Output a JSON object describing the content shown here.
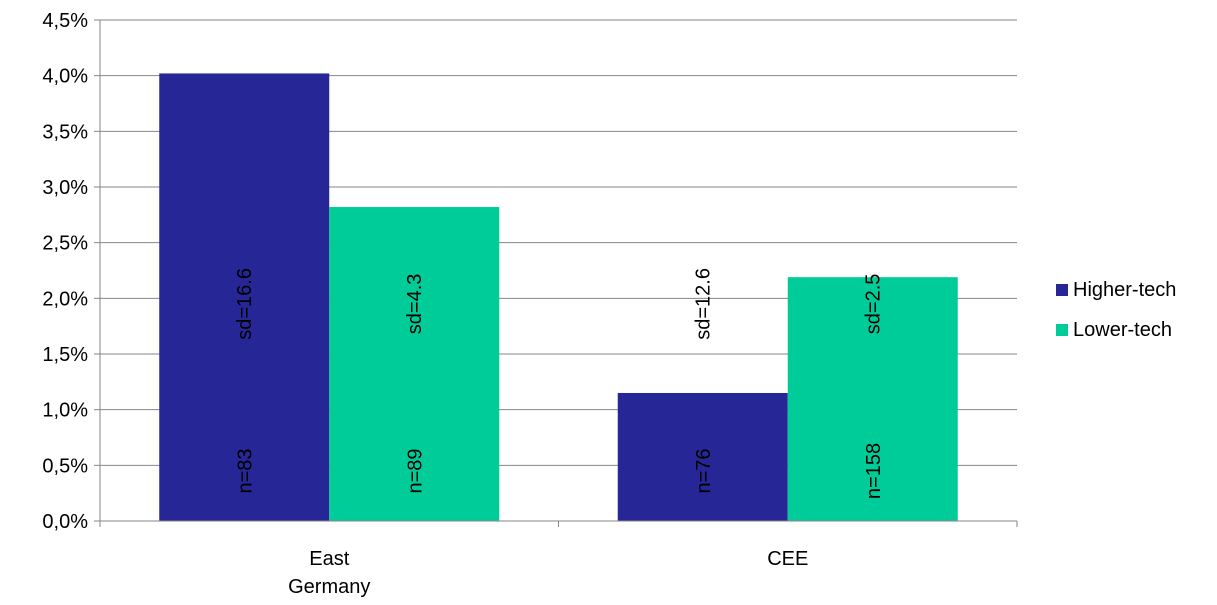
{
  "chart_data": {
    "type": "bar",
    "categories": [
      "East Germany",
      "CEE"
    ],
    "series": [
      {
        "name": "Higher-tech",
        "color": "#262696",
        "values": [
          4.02,
          1.15
        ],
        "sd_labels": [
          "sd=16.6",
          "sd=12.6"
        ],
        "n_labels": [
          "n=83",
          "n=76"
        ]
      },
      {
        "name": "Lower-tech",
        "color": "#00CC99",
        "values": [
          2.82,
          2.19
        ],
        "sd_labels": [
          "sd=4.3",
          "sd=2.5"
        ],
        "n_labels": [
          "n=89",
          "n=158"
        ]
      }
    ],
    "category_lines": [
      [
        "East",
        "Germany"
      ],
      [
        "CEE"
      ]
    ],
    "y_ticks": [
      "0,0%",
      "0,5%",
      "1,0%",
      "1,5%",
      "2,0%",
      "2,5%",
      "3,0%",
      "3,5%",
      "4,0%",
      "4,5%"
    ],
    "ylim": [
      0,
      4.5
    ],
    "ystep": 0.5,
    "grid": true,
    "legend_position": "right",
    "title": "",
    "xlabel": "",
    "ylabel": ""
  }
}
